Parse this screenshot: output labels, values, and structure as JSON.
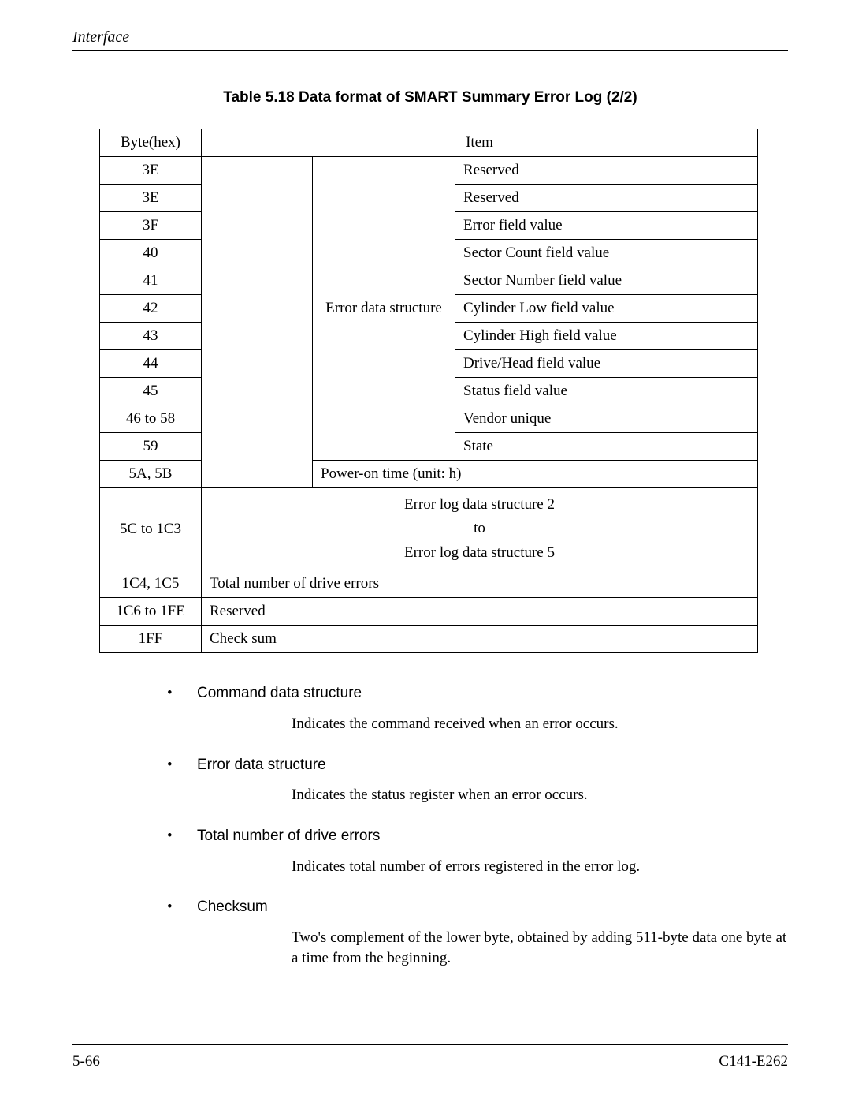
{
  "header": {
    "section": "Interface"
  },
  "caption": "Table 5.18  Data format of SMART Summary Error Log (2/2)",
  "table": {
    "head": {
      "byte": "Byte(hex)",
      "item": "Item"
    },
    "error_struct_label": "Error data structure",
    "rows": [
      {
        "byte": "3E",
        "item": "Reserved"
      },
      {
        "byte": "3E",
        "item": "Reserved"
      },
      {
        "byte": "3F",
        "item": "Error field value"
      },
      {
        "byte": "40",
        "item": "Sector Count field value"
      },
      {
        "byte": "41",
        "item": "Sector Number field value"
      },
      {
        "byte": "42",
        "item": "Cylinder Low field value"
      },
      {
        "byte": "43",
        "item": "Cylinder High field value"
      },
      {
        "byte": "44",
        "item": "Drive/Head field value"
      },
      {
        "byte": "45",
        "item": "Status field value"
      },
      {
        "byte": "46 to 58",
        "item": "Vendor unique"
      },
      {
        "byte": "59",
        "item": "State"
      }
    ],
    "poweron": {
      "byte": "5A, 5B",
      "item": "Power-on time (unit: h)"
    },
    "range": {
      "byte": "5C to 1C3",
      "lines": [
        "Error log data structure 2",
        "to",
        "Error log data structure 5"
      ]
    },
    "total": {
      "byte": "1C4, 1C5",
      "item": "Total number of drive errors"
    },
    "reserved": {
      "byte": "1C6 to 1FE",
      "item": "Reserved"
    },
    "checksum": {
      "byte": "1FF",
      "item": "Check sum"
    }
  },
  "bullets": [
    {
      "title": "Command data structure",
      "body": "Indicates the command received when an error occurs."
    },
    {
      "title": "Error data structure",
      "body": "Indicates the status register when an error occurs."
    },
    {
      "title": "Total number of drive errors",
      "body": "Indicates total number of errors registered in the error log."
    },
    {
      "title": "Checksum",
      "body": "Two's complement of the lower byte, obtained by adding 511-byte data one byte at a time from the beginning."
    }
  ],
  "footer": {
    "left": "5-66",
    "right": "C141-E262"
  }
}
